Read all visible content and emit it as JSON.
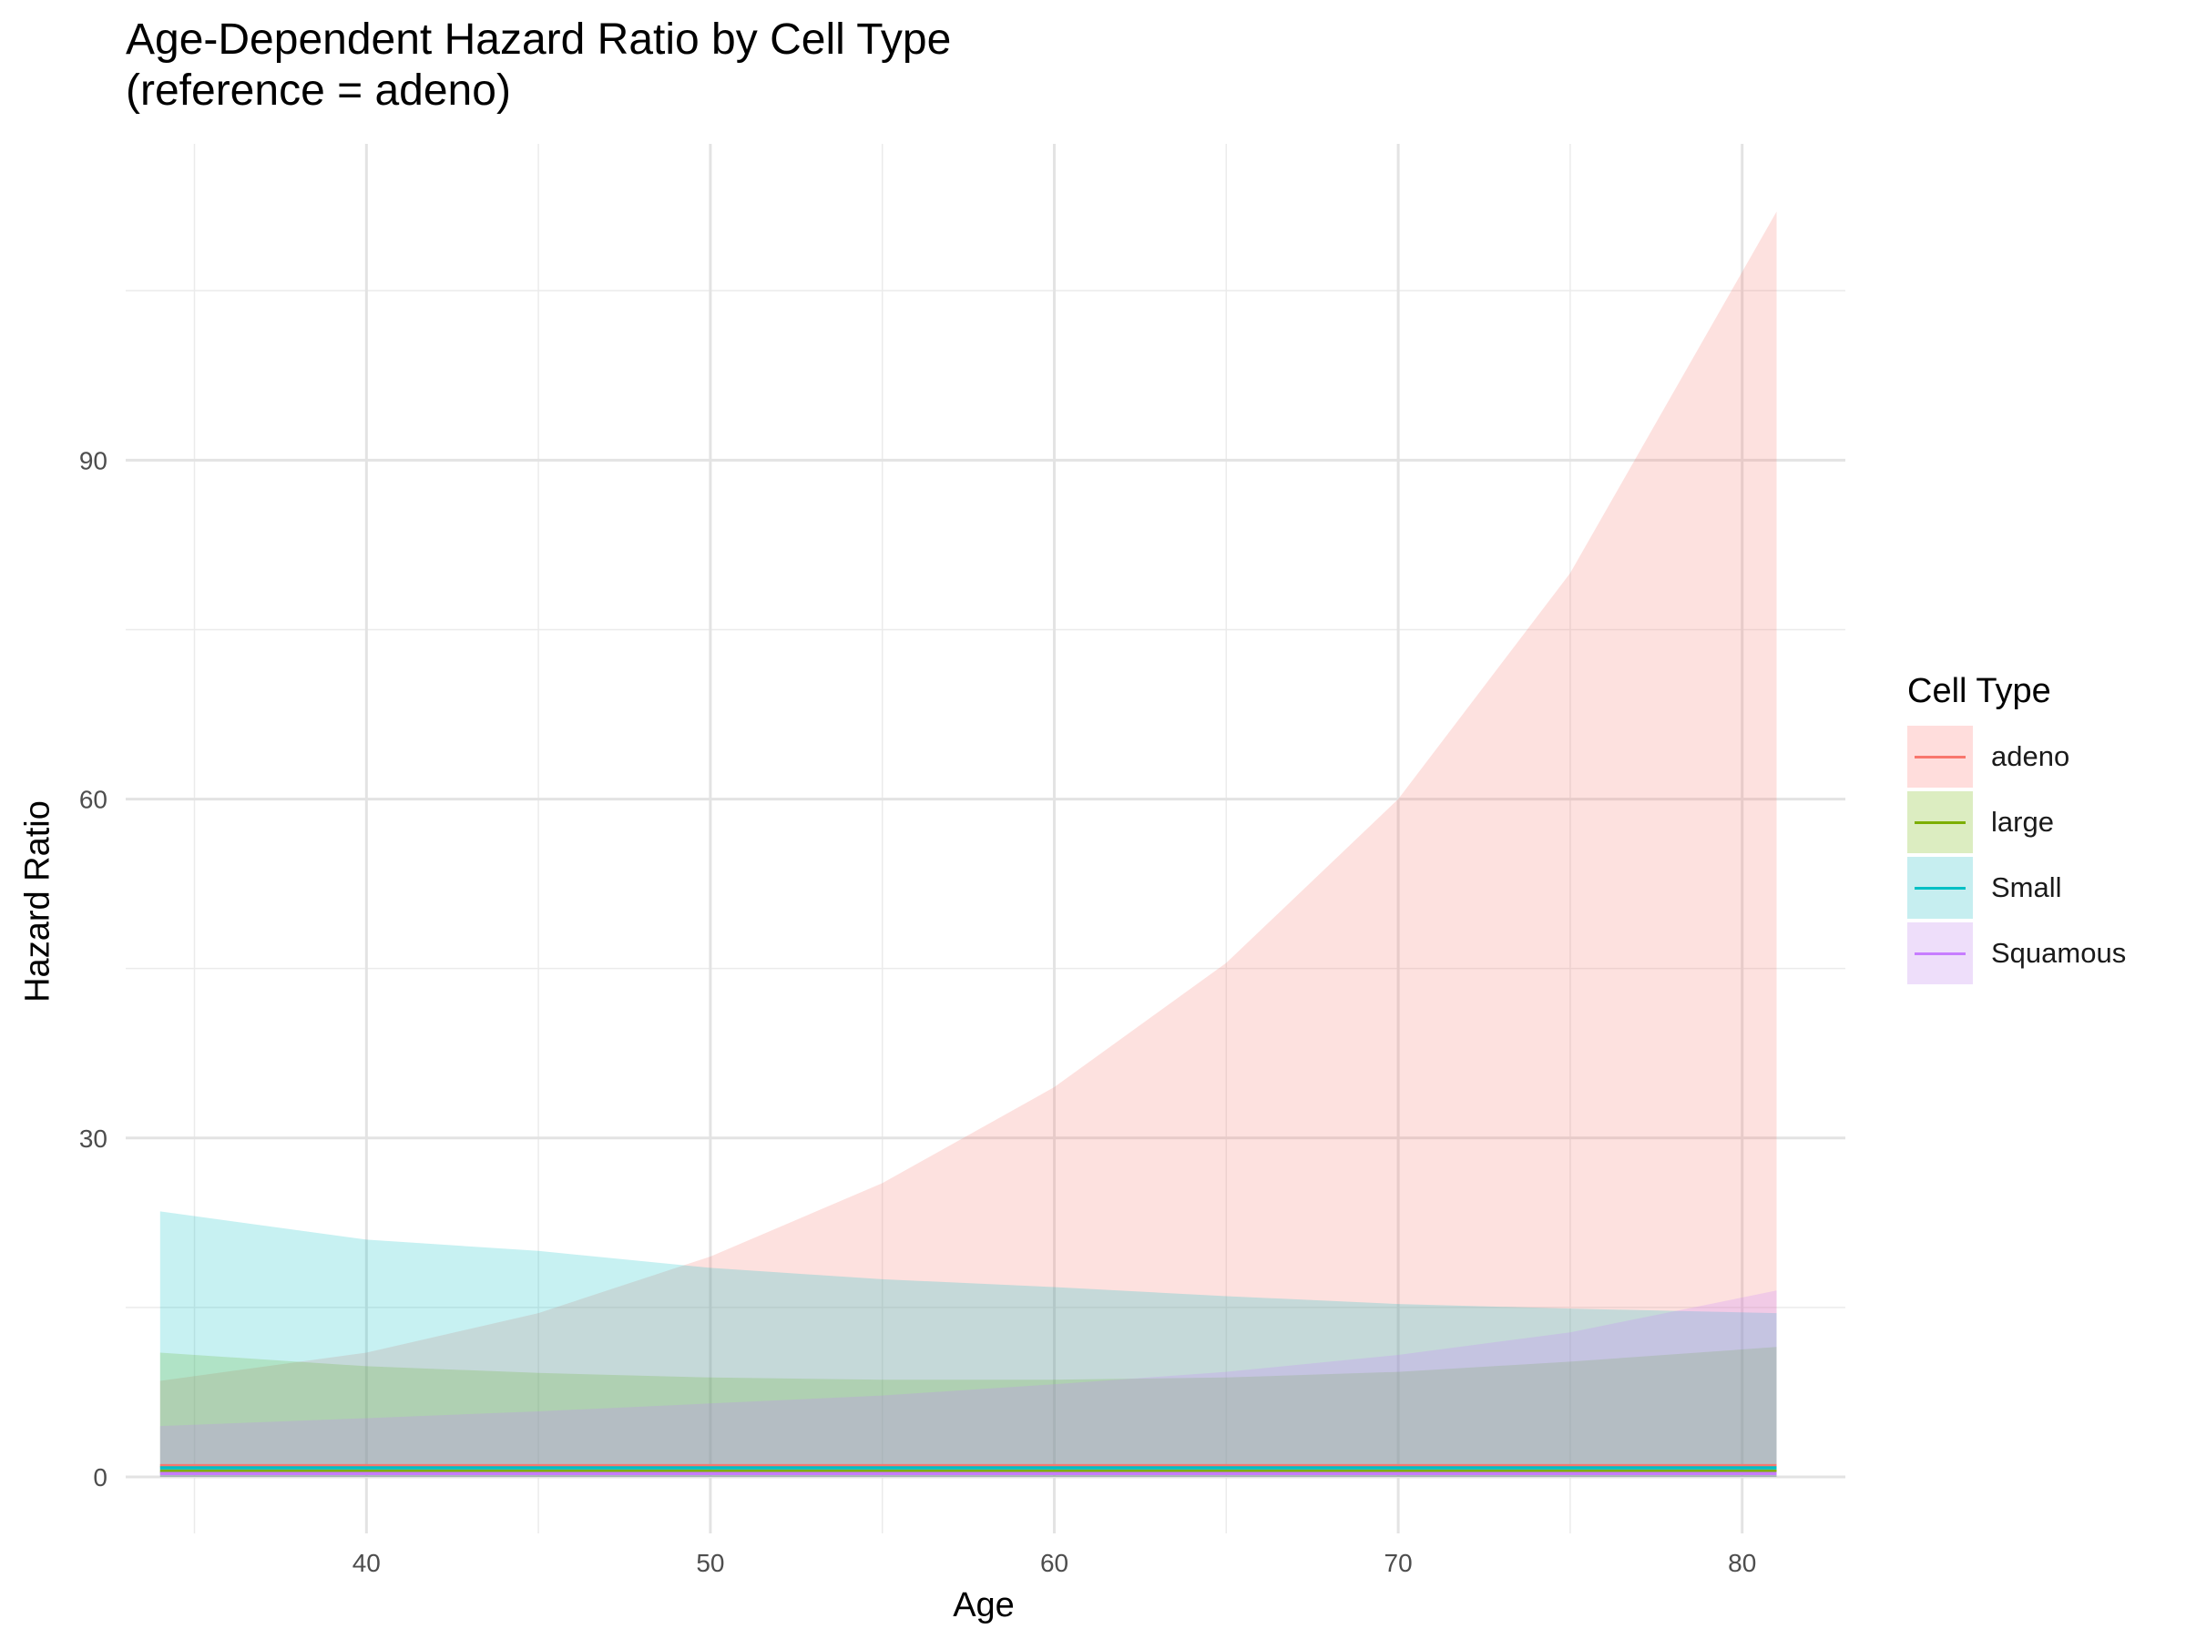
{
  "chart_data": {
    "type": "area",
    "title_line1": "Age-Dependent Hazard Ratio by Cell Type",
    "title_line2": "(reference = adeno)",
    "xlabel": "Age",
    "ylabel": "Hazard Ratio",
    "xlim": [
      33,
      83
    ],
    "ylim": [
      -5,
      118
    ],
    "x_ticks": [
      40,
      50,
      60,
      70,
      80
    ],
    "x_minor_ticks": [
      35,
      45,
      55,
      65,
      75
    ],
    "y_ticks": [
      0,
      30,
      60,
      90
    ],
    "y_minor_ticks": [
      15,
      45,
      75,
      105
    ],
    "x_tick_labels": [
      "40",
      "50",
      "60",
      "70",
      "80"
    ],
    "y_tick_labels": [
      "0",
      "30",
      "60",
      "90"
    ],
    "grid": true,
    "legend_position": "right",
    "legend_title": "Cell Type",
    "series": [
      {
        "name": "adeno",
        "color": "#F8766D",
        "fill": "#FFDDDC",
        "x": [
          34,
          40,
          45,
          50,
          55,
          60,
          65,
          70,
          75,
          81
        ],
        "hr": [
          1,
          1,
          1,
          1,
          1,
          1,
          1,
          1,
          1,
          1
        ],
        "upper": [
          8.5,
          11,
          14.5,
          19.5,
          26,
          34.5,
          45.5,
          60,
          80,
          112
        ],
        "lower": [
          0,
          0,
          0,
          0,
          0,
          0,
          0,
          0,
          0,
          0
        ]
      },
      {
        "name": "large",
        "color": "#7CAE00",
        "fill": "#DCEDC1",
        "x": [
          34,
          40,
          45,
          50,
          55,
          60,
          65,
          70,
          75,
          81
        ],
        "hr": [
          0.5,
          0.5,
          0.5,
          0.5,
          0.5,
          0.5,
          0.5,
          0.5,
          0.5,
          0.5
        ],
        "upper": [
          11,
          9.8,
          9.2,
          8.8,
          8.6,
          8.6,
          8.8,
          9.3,
          10.2,
          11.5
        ],
        "lower": [
          0,
          0,
          0,
          0,
          0,
          0,
          0,
          0,
          0,
          0
        ]
      },
      {
        "name": "Small",
        "color": "#00BFC4",
        "fill": "#C6EEF0",
        "x": [
          34,
          40,
          45,
          50,
          55,
          60,
          65,
          70,
          75,
          81
        ],
        "hr": [
          0.8,
          0.8,
          0.8,
          0.8,
          0.8,
          0.8,
          0.8,
          0.8,
          0.8,
          0.8
        ],
        "upper": [
          23.5,
          21,
          20,
          18.5,
          17.5,
          16.8,
          16,
          15.3,
          14.9,
          14.5
        ],
        "lower": [
          0,
          0,
          0,
          0,
          0,
          0,
          0,
          0,
          0,
          0
        ]
      },
      {
        "name": "Squamous",
        "color": "#C77CFF",
        "fill": "#EEDEFA",
        "x": [
          34,
          40,
          45,
          50,
          55,
          60,
          65,
          70,
          75,
          81
        ],
        "hr": [
          0.3,
          0.3,
          0.3,
          0.3,
          0.3,
          0.3,
          0.3,
          0.3,
          0.3,
          0.3
        ],
        "upper": [
          4.5,
          5.2,
          5.8,
          6.5,
          7.2,
          8.2,
          9.3,
          10.8,
          12.8,
          16.5
        ],
        "lower": [
          0,
          0,
          0,
          0,
          0,
          0,
          0,
          0,
          0,
          0
        ]
      }
    ]
  }
}
